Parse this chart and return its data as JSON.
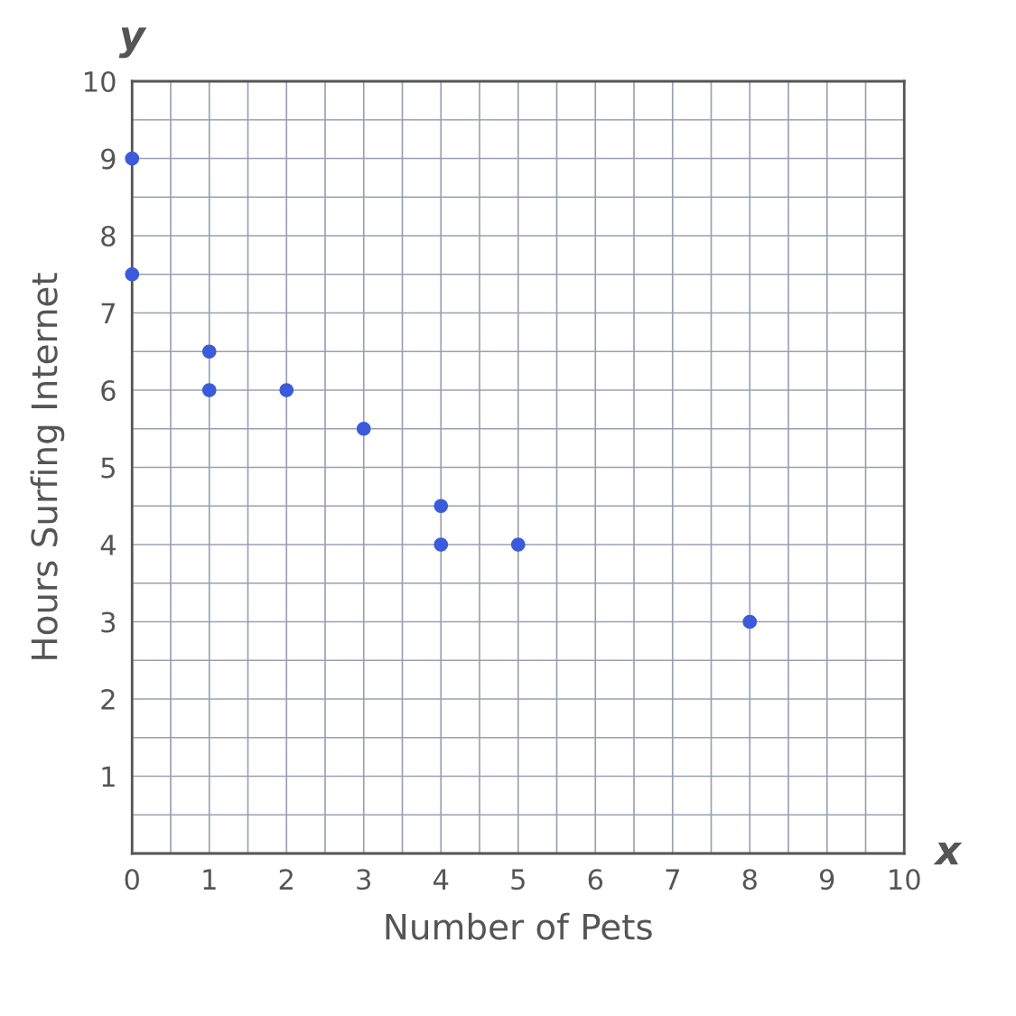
{
  "chart_data": {
    "type": "scatter",
    "xlabel": "Number of Pets",
    "ylabel": "Hours Surfing Internet",
    "x": [
      0,
      0,
      1,
      1,
      2,
      3,
      4,
      4,
      5,
      8
    ],
    "series": [
      {
        "color": "#3b5bdb",
        "values": [
          9,
          7.5,
          6.5,
          6,
          6,
          5.5,
          4.5,
          4,
          4,
          3
        ]
      }
    ],
    "xlim": [
      0,
      10
    ],
    "ylim": [
      0,
      10
    ],
    "xticks": [
      0,
      1,
      2,
      3,
      4,
      5,
      6,
      7,
      8,
      9,
      10
    ],
    "yticks": [
      {
        "value": 0,
        "label": null
      },
      1,
      2,
      3,
      4,
      5,
      6,
      7,
      8,
      9,
      10
    ],
    "grid": true,
    "marker": "circle",
    "annotations": [
      "x",
      "y"
    ]
  }
}
